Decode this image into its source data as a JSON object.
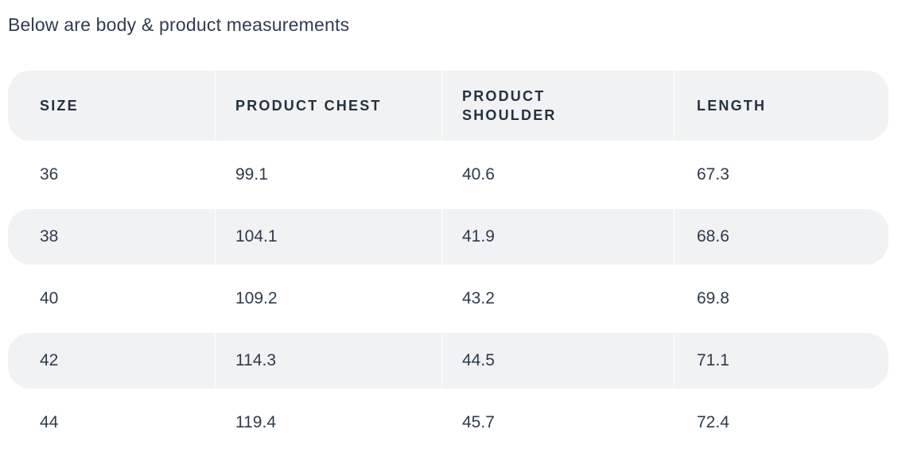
{
  "title": "Below are body & product measurements",
  "colors": {
    "background": "#ffffff",
    "text_primary": "#2e3d4f",
    "header_text": "#243240",
    "row_stripe": "#f1f2f4"
  },
  "table": {
    "columns": [
      "SIZE",
      "PRODUCT CHEST",
      "PRODUCT SHOULDER",
      "LENGTH"
    ],
    "rows": [
      [
        "36",
        "99.1",
        "40.6",
        "67.3"
      ],
      [
        "38",
        "104.1",
        "41.9",
        "68.6"
      ],
      [
        "40",
        "109.2",
        "43.2",
        "69.8"
      ],
      [
        "42",
        "114.3",
        "44.5",
        "71.1"
      ],
      [
        "44",
        "119.4",
        "45.7",
        "72.4"
      ]
    ]
  }
}
